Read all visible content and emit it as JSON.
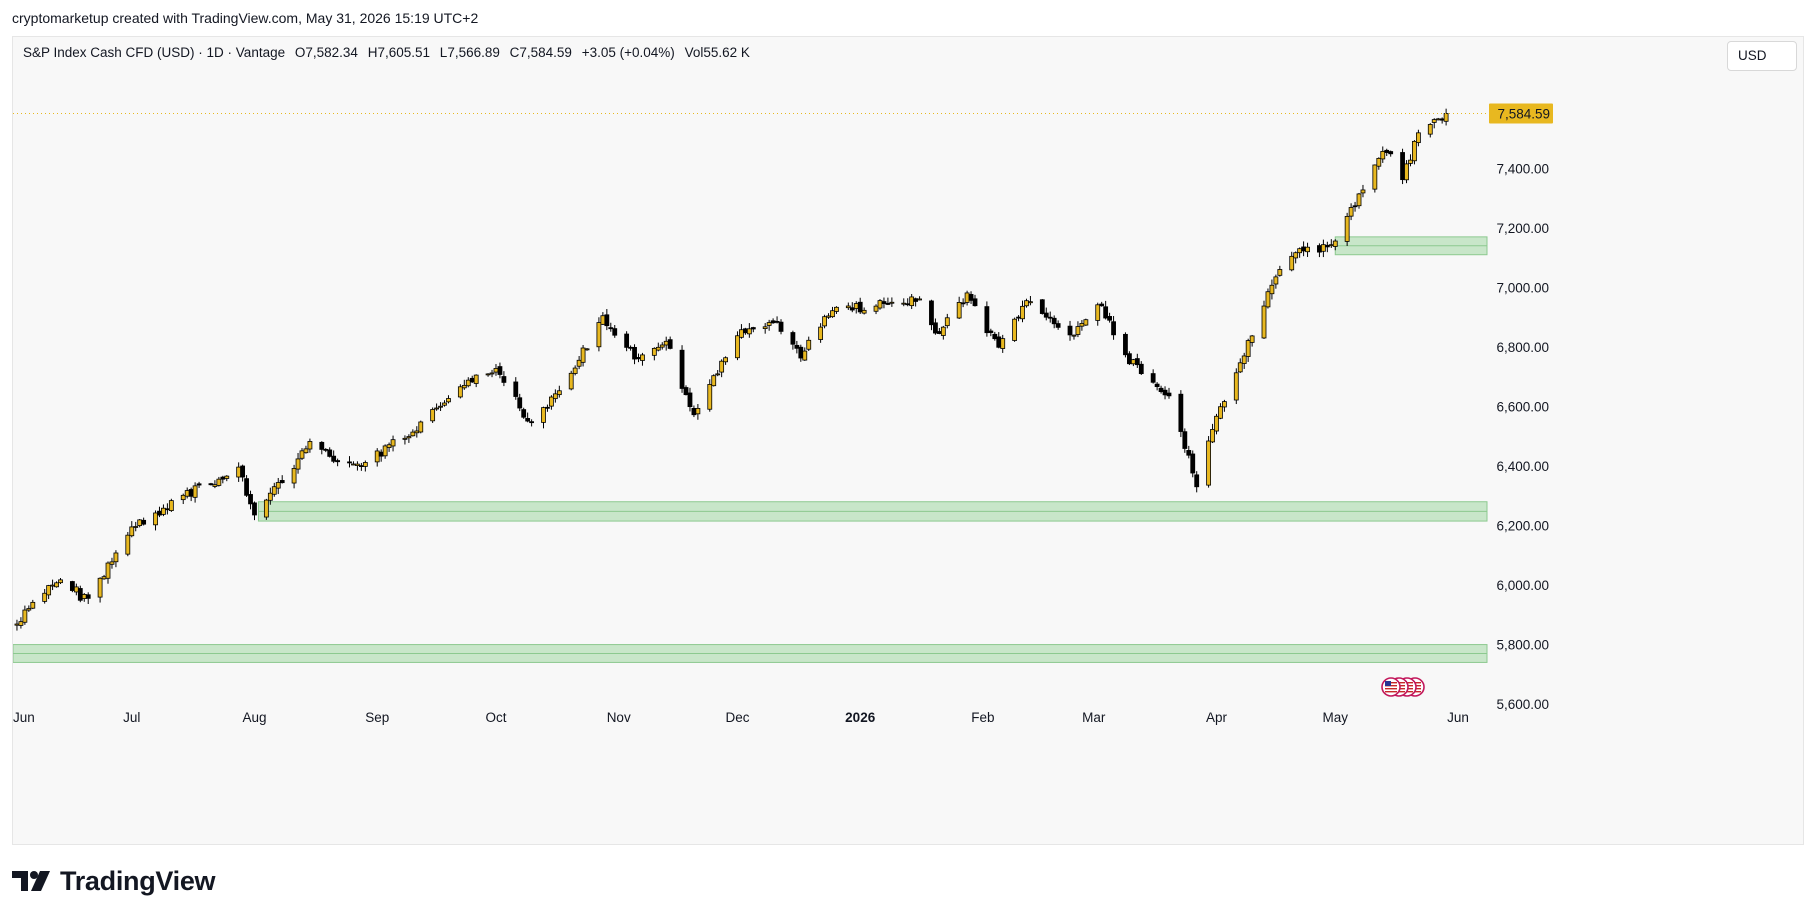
{
  "header": {
    "published_by": "cryptomarketup created with TradingView.com, May 31, 2026 15:19 UTC+2"
  },
  "legend": {
    "symbol_line": "S&P Index Cash CFD (USD) · 1D · Vantage",
    "open_label": "O",
    "open": "7,582.34",
    "high_label": "H",
    "high": "7,605.51",
    "low_label": "L",
    "low": "7,566.89",
    "close_label": "C",
    "close": "7,584.59",
    "change": "+3.05 (+0.04%)",
    "vol_label": "Vol",
    "volume": "55.62 K"
  },
  "currency_button": {
    "label": "USD"
  },
  "brand": {
    "name": "TradingView"
  },
  "colors": {
    "up_fill": "#e8b820",
    "down_fill": "#000000",
    "wick": "#000000",
    "zone_fill": "#c8e6c9",
    "zone_border": "#8cc98f",
    "price_tag": "#e8b820",
    "axis_text": "#131722",
    "background": "#f8f8f8"
  },
  "chart_data": {
    "type": "candlestick",
    "instrument": "S&P Index Cash CFD (USD)",
    "timeframe": "1D",
    "y_range": [
      5560,
      7640
    ],
    "y_ticks": [
      5600,
      5800,
      6000,
      6200,
      6400,
      6600,
      6800,
      7000,
      7200,
      7400
    ],
    "y_tick_labels": [
      "5,600.00",
      "5,800.00",
      "6,000.00",
      "6,200.00",
      "6,400.00",
      "6,600.00",
      "6,800.00",
      "7,000.00",
      "7,200.00",
      "7,400.00"
    ],
    "x_range": [
      "2025-06-01",
      "2026-06-25"
    ],
    "x_ticks": [
      {
        "date": "2025-06-01",
        "label": "Jun"
      },
      {
        "date": "2025-07-01",
        "label": "Jul"
      },
      {
        "date": "2025-08-01",
        "label": "Aug"
      },
      {
        "date": "2025-09-01",
        "label": "Sep"
      },
      {
        "date": "2025-10-01",
        "label": "Oct"
      },
      {
        "date": "2025-11-01",
        "label": "Nov"
      },
      {
        "date": "2025-12-01",
        "label": "Dec"
      },
      {
        "date": "2026-01-01",
        "label": "2026"
      },
      {
        "date": "2026-02-01",
        "label": "Feb"
      },
      {
        "date": "2026-03-01",
        "label": "Mar"
      },
      {
        "date": "2026-04-01",
        "label": "Apr"
      },
      {
        "date": "2026-05-01",
        "label": "May"
      },
      {
        "date": "2026-06-01",
        "label": "Jun"
      }
    ],
    "last_price": 7584.59,
    "last_price_label": "7,584.59",
    "zones": [
      {
        "from_date": "2025-08-02",
        "low": 6215,
        "high": 6280
      },
      {
        "from_date": "2026-05-01",
        "low": 7110,
        "high": 7170
      },
      {
        "from_date": "2025-06-01",
        "low": 5740,
        "high": 5800
      }
    ],
    "key_points": [
      {
        "date": "2025-06-02",
        "close": 5880
      },
      {
        "date": "2025-06-13",
        "close": 6030
      },
      {
        "date": "2025-06-20",
        "close": 5940
      },
      {
        "date": "2025-06-30",
        "close": 6180
      },
      {
        "date": "2025-07-10",
        "close": 6270
      },
      {
        "date": "2025-07-28",
        "close": 6390
      },
      {
        "date": "2025-08-01",
        "close": 6240
      },
      {
        "date": "2025-08-15",
        "close": 6470
      },
      {
        "date": "2025-08-27",
        "close": 6390
      },
      {
        "date": "2025-09-10",
        "close": 6520
      },
      {
        "date": "2025-09-22",
        "close": 6680
      },
      {
        "date": "2025-10-01",
        "close": 6720
      },
      {
        "date": "2025-10-10",
        "close": 6540
      },
      {
        "date": "2025-10-20",
        "close": 6720
      },
      {
        "date": "2025-10-28",
        "close": 6900
      },
      {
        "date": "2025-11-06",
        "close": 6760
      },
      {
        "date": "2025-11-13",
        "close": 6830
      },
      {
        "date": "2025-11-20",
        "close": 6560
      },
      {
        "date": "2025-12-01",
        "close": 6840
      },
      {
        "date": "2025-12-11",
        "close": 6880
      },
      {
        "date": "2025-12-17",
        "close": 6760
      },
      {
        "date": "2025-12-24",
        "close": 6920
      },
      {
        "date": "2026-01-06",
        "close": 6940
      },
      {
        "date": "2026-01-16",
        "close": 6960
      },
      {
        "date": "2026-01-20",
        "close": 6830
      },
      {
        "date": "2026-01-28",
        "close": 6970
      },
      {
        "date": "2026-02-05",
        "close": 6800
      },
      {
        "date": "2026-02-12",
        "close": 6950
      },
      {
        "date": "2026-02-23",
        "close": 6840
      },
      {
        "date": "2026-03-02",
        "close": 6950
      },
      {
        "date": "2026-03-10",
        "close": 6760
      },
      {
        "date": "2026-03-20",
        "close": 6620
      },
      {
        "date": "2026-03-27",
        "close": 6340
      },
      {
        "date": "2026-04-01",
        "close": 6560
      },
      {
        "date": "2026-04-08",
        "close": 6780
      },
      {
        "date": "2026-04-15",
        "close": 7020
      },
      {
        "date": "2026-04-22",
        "close": 7120
      },
      {
        "date": "2026-04-30",
        "close": 7140
      },
      {
        "date": "2026-05-08",
        "close": 7320
      },
      {
        "date": "2026-05-14",
        "close": 7470
      },
      {
        "date": "2026-05-18",
        "close": 7370
      },
      {
        "date": "2026-05-22",
        "close": 7510
      },
      {
        "date": "2026-05-29",
        "close": 7584.59
      }
    ]
  }
}
